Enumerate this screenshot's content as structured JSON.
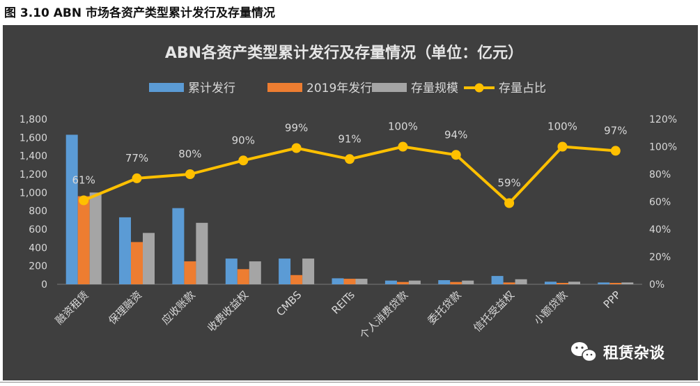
{
  "caption": "图 3.10 ABN 市场各资产类型累计发行及存量情况",
  "watermark": {
    "text": "租赁杂谈",
    "icon": "wechat-icon"
  },
  "colors": {
    "background": "#3f3f3f",
    "series1": "#5b9bd5",
    "series2": "#ed7d31",
    "series3": "#a5a5a5",
    "line": "#ffc000",
    "text": "#d9d9d9",
    "grid": "#5a5a5a"
  },
  "chart_data": {
    "type": "bar",
    "title": "ABN各资产类型累计发行及存量情况（单位：亿元）",
    "categories": [
      "融资租赁",
      "保理融资",
      "应收账款",
      "收费收益权",
      "CMBS",
      "REITs",
      "个人消费贷款",
      "委托贷款",
      "信托受益权",
      "小额贷款",
      "PPP"
    ],
    "series": [
      {
        "name": "累计发行",
        "type": "bar",
        "axis": "left",
        "values": [
          1630,
          730,
          830,
          280,
          280,
          65,
          40,
          45,
          90,
          28,
          20
        ]
      },
      {
        "name": "2019年发行",
        "type": "bar",
        "axis": "left",
        "values": [
          960,
          460,
          250,
          165,
          100,
          60,
          25,
          25,
          20,
          15,
          15
        ]
      },
      {
        "name": "存量规模",
        "type": "bar",
        "axis": "left",
        "values": [
          1000,
          560,
          670,
          250,
          280,
          60,
          40,
          40,
          55,
          28,
          20
        ]
      },
      {
        "name": "存量占比",
        "type": "line",
        "axis": "right",
        "values": [
          61,
          77,
          80,
          90,
          99,
          91,
          100,
          94,
          59,
          100,
          97
        ],
        "labels": [
          "61%",
          "77%",
          "80%",
          "90%",
          "99%",
          "91%",
          "100%",
          "94%",
          "59%",
          "100%",
          "97%"
        ]
      }
    ],
    "y_left": {
      "min": 0,
      "max": 1800,
      "ticks": [
        "0",
        "200",
        "400",
        "600",
        "800",
        "1,000",
        "1,200",
        "1,400",
        "1,600",
        "1,800"
      ]
    },
    "y_right": {
      "min": 0,
      "max": 120,
      "ticks": [
        "0%",
        "20%",
        "40%",
        "60%",
        "80%",
        "100%",
        "120%"
      ]
    },
    "legend_position": "top",
    "grid": false
  }
}
